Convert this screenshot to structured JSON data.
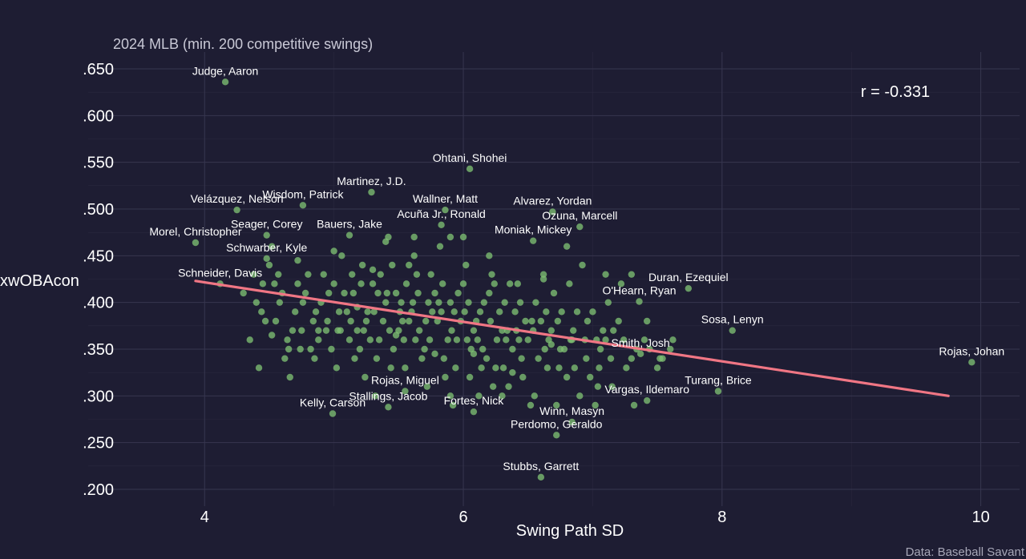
{
  "chart_data": {
    "type": "scatter",
    "subtitle": "2024 MLB (min. 200 competitive swings)",
    "xlabel": "Swing Path SD",
    "ylabel": "xwOBAcon",
    "caption": "Data: Baseball Savant",
    "correlation_label": "r = -0.331",
    "xlim": [
      3.1,
      10.3
    ],
    "ylim": [
      0.182,
      0.668
    ],
    "x_ticks": [
      4,
      6,
      8,
      10
    ],
    "x_tick_labels": [
      "4",
      "6",
      "8",
      "10"
    ],
    "y_ticks": [
      0.2,
      0.25,
      0.3,
      0.35,
      0.4,
      0.45,
      0.5,
      0.55,
      0.6,
      0.65
    ],
    "y_tick_labels": [
      ".200",
      ".250",
      ".300",
      ".350",
      ".400",
      ".450",
      ".500",
      ".550",
      ".600",
      ".650"
    ],
    "grid": true,
    "point_color": "#7dbf72",
    "fit_color": "#f07684",
    "fit_line": {
      "x": [
        3.93,
        9.75
      ],
      "y": [
        0.423,
        0.3
      ]
    },
    "labeled_points": [
      {
        "name": "Judge, Aaron",
        "x": 4.16,
        "y": 0.636
      },
      {
        "name": "Ohtani, Shohei",
        "x": 6.05,
        "y": 0.543
      },
      {
        "name": "Martinez, J.D.",
        "x": 5.29,
        "y": 0.518
      },
      {
        "name": "Wisdom, Patrick",
        "x": 4.76,
        "y": 0.504
      },
      {
        "name": "Velázquez, Nelson",
        "x": 4.25,
        "y": 0.499
      },
      {
        "name": "Wallner, Matt",
        "x": 5.86,
        "y": 0.499
      },
      {
        "name": "Alvarez, Yordan",
        "x": 6.69,
        "y": 0.497
      },
      {
        "name": "Seager, Corey",
        "x": 4.48,
        "y": 0.472
      },
      {
        "name": "Acuña Jr., Ronald",
        "x": 5.83,
        "y": 0.483
      },
      {
        "name": "Morel, Christopher",
        "x": 3.93,
        "y": 0.464
      },
      {
        "name": "Bauers, Jake",
        "x": 5.12,
        "y": 0.472
      },
      {
        "name": "Ozuna, Marcell",
        "x": 6.9,
        "y": 0.481
      },
      {
        "name": "Moniak, Mickey",
        "x": 6.54,
        "y": 0.466
      },
      {
        "name": "Schwarber, Kyle",
        "x": 4.48,
        "y": 0.447
      },
      {
        "name": "Schneider, Davis",
        "x": 4.12,
        "y": 0.42
      },
      {
        "name": "Duran, Ezequiel",
        "x": 7.74,
        "y": 0.415
      },
      {
        "name": "O'Hearn, Ryan",
        "x": 7.36,
        "y": 0.401
      },
      {
        "name": "Sosa, Lenyn",
        "x": 8.08,
        "y": 0.37
      },
      {
        "name": "Smith, Josh",
        "x": 7.37,
        "y": 0.345
      },
      {
        "name": "Rojas, Johan",
        "x": 9.93,
        "y": 0.336
      },
      {
        "name": "Turang, Brice",
        "x": 7.97,
        "y": 0.305
      },
      {
        "name": "Rojas, Miguel",
        "x": 5.55,
        "y": 0.305
      },
      {
        "name": "Stallings, Jacob",
        "x": 5.42,
        "y": 0.288
      },
      {
        "name": "Kelly, Carson",
        "x": 4.99,
        "y": 0.281
      },
      {
        "name": "Fortes, Nick",
        "x": 6.08,
        "y": 0.283
      },
      {
        "name": "Winn, Masyn",
        "x": 6.84,
        "y": 0.272
      },
      {
        "name": "Vargas, Ildemaro",
        "x": 7.42,
        "y": 0.295
      },
      {
        "name": "Perdomo, Geraldo",
        "x": 6.72,
        "y": 0.258
      },
      {
        "name": "Stubbs, Garrett",
        "x": 6.6,
        "y": 0.213
      }
    ],
    "points": [
      [
        4.45,
        0.42
      ],
      [
        4.5,
        0.44
      ],
      [
        4.6,
        0.41
      ],
      [
        4.7,
        0.39
      ],
      [
        4.8,
        0.43
      ],
      [
        4.9,
        0.4
      ],
      [
        5.0,
        0.42
      ],
      [
        5.05,
        0.37
      ],
      [
        5.1,
        0.39
      ],
      [
        5.15,
        0.41
      ],
      [
        5.2,
        0.35
      ],
      [
        5.25,
        0.38
      ],
      [
        5.3,
        0.42
      ],
      [
        5.35,
        0.36
      ],
      [
        5.4,
        0.4
      ],
      [
        5.45,
        0.44
      ],
      [
        5.5,
        0.37
      ],
      [
        5.55,
        0.33
      ],
      [
        5.6,
        0.39
      ],
      [
        5.65,
        0.41
      ],
      [
        5.7,
        0.35
      ],
      [
        5.75,
        0.43
      ],
      [
        5.8,
        0.38
      ],
      [
        5.85,
        0.34
      ],
      [
        5.9,
        0.4
      ],
      [
        5.95,
        0.36
      ],
      [
        6.0,
        0.42
      ],
      [
        6.05,
        0.32
      ],
      [
        6.1,
        0.38
      ],
      [
        6.15,
        0.35
      ],
      [
        6.2,
        0.41
      ],
      [
        6.25,
        0.33
      ],
      [
        6.3,
        0.37
      ],
      [
        6.35,
        0.31
      ],
      [
        6.4,
        0.39
      ],
      [
        6.45,
        0.34
      ],
      [
        6.5,
        0.36
      ],
      [
        6.55,
        0.3
      ],
      [
        6.6,
        0.38
      ],
      [
        6.65,
        0.33
      ],
      [
        6.7,
        0.41
      ],
      [
        6.75,
        0.35
      ],
      [
        6.8,
        0.32
      ],
      [
        6.85,
        0.37
      ],
      [
        6.9,
        0.3
      ],
      [
        6.95,
        0.34
      ],
      [
        7.0,
        0.39
      ],
      [
        7.05,
        0.33
      ],
      [
        7.1,
        0.36
      ],
      [
        7.15,
        0.31
      ],
      [
        7.2,
        0.38
      ],
      [
        7.3,
        0.34
      ],
      [
        7.4,
        0.36
      ],
      [
        7.5,
        0.33
      ],
      [
        7.6,
        0.35
      ],
      [
        4.35,
        0.36
      ],
      [
        4.55,
        0.38
      ],
      [
        4.65,
        0.35
      ],
      [
        4.75,
        0.37
      ],
      [
        4.85,
        0.34
      ],
      [
        4.95,
        0.38
      ],
      [
        5.02,
        0.33
      ],
      [
        5.12,
        0.36
      ],
      [
        5.22,
        0.44
      ],
      [
        5.32,
        0.3
      ],
      [
        5.42,
        0.47
      ],
      [
        5.52,
        0.4
      ],
      [
        5.62,
        0.45
      ],
      [
        5.72,
        0.31
      ],
      [
        5.82,
        0.46
      ],
      [
        5.92,
        0.29
      ],
      [
        6.02,
        0.44
      ],
      [
        6.12,
        0.3
      ],
      [
        6.22,
        0.43
      ],
      [
        6.32,
        0.4
      ],
      [
        6.42,
        0.42
      ],
      [
        6.52,
        0.29
      ],
      [
        6.62,
        0.43
      ],
      [
        6.72,
        0.29
      ],
      [
        6.82,
        0.42
      ],
      [
        6.92,
        0.44
      ],
      [
        7.02,
        0.29
      ],
      [
        7.12,
        0.4
      ],
      [
        7.22,
        0.42
      ],
      [
        7.32,
        0.29
      ],
      [
        7.42,
        0.38
      ],
      [
        7.52,
        0.34
      ],
      [
        7.62,
        0.36
      ],
      [
        4.4,
        0.4
      ],
      [
        4.42,
        0.33
      ],
      [
        4.52,
        0.46
      ],
      [
        4.62,
        0.34
      ],
      [
        4.72,
        0.42
      ],
      [
        4.82,
        0.35
      ],
      [
        4.92,
        0.43
      ],
      [
        5.06,
        0.45
      ],
      [
        5.16,
        0.34
      ],
      [
        5.26,
        0.39
      ],
      [
        5.36,
        0.43
      ],
      [
        5.46,
        0.35
      ],
      [
        5.56,
        0.42
      ],
      [
        5.66,
        0.37
      ],
      [
        5.76,
        0.39
      ],
      [
        5.86,
        0.32
      ],
      [
        5.96,
        0.41
      ],
      [
        6.06,
        0.35
      ],
      [
        6.16,
        0.4
      ],
      [
        6.26,
        0.36
      ],
      [
        6.36,
        0.42
      ],
      [
        6.46,
        0.32
      ],
      [
        6.56,
        0.4
      ],
      [
        6.66,
        0.36
      ],
      [
        6.76,
        0.39
      ],
      [
        6.86,
        0.33
      ],
      [
        6.96,
        0.38
      ],
      [
        7.06,
        0.35
      ],
      [
        7.16,
        0.37
      ],
      [
        7.26,
        0.33
      ],
      [
        4.58,
        0.4
      ],
      [
        4.68,
        0.37
      ],
      [
        4.78,
        0.41
      ],
      [
        4.88,
        0.37
      ],
      [
        4.98,
        0.35
      ],
      [
        5.08,
        0.41
      ],
      [
        5.18,
        0.37
      ],
      [
        5.28,
        0.36
      ],
      [
        5.38,
        0.38
      ],
      [
        5.48,
        0.41
      ],
      [
        5.58,
        0.38
      ],
      [
        5.68,
        0.34
      ],
      [
        5.78,
        0.41
      ],
      [
        5.88,
        0.36
      ],
      [
        5.98,
        0.38
      ],
      [
        6.08,
        0.37
      ],
      [
        6.18,
        0.34
      ],
      [
        6.28,
        0.39
      ],
      [
        6.38,
        0.35
      ],
      [
        6.48,
        0.38
      ],
      [
        6.58,
        0.34
      ],
      [
        6.68,
        0.37
      ],
      [
        6.78,
        0.35
      ],
      [
        6.88,
        0.39
      ],
      [
        6.98,
        0.32
      ],
      [
        7.08,
        0.37
      ],
      [
        5.21,
        0.42
      ],
      [
        5.31,
        0.39
      ],
      [
        5.41,
        0.41
      ],
      [
        5.51,
        0.39
      ],
      [
        5.61,
        0.4
      ],
      [
        5.71,
        0.38
      ],
      [
        5.81,
        0.4
      ],
      [
        5.91,
        0.37
      ],
      [
        6.01,
        0.39
      ],
      [
        6.11,
        0.36
      ],
      [
        6.21,
        0.38
      ],
      [
        6.31,
        0.33
      ],
      [
        6.41,
        0.37
      ],
      [
        4.3,
        0.41
      ],
      [
        4.38,
        0.43
      ],
      [
        4.47,
        0.38
      ],
      [
        4.57,
        0.43
      ],
      [
        4.66,
        0.32
      ],
      [
        4.76,
        0.4
      ],
      [
        4.86,
        0.39
      ],
      [
        4.96,
        0.41
      ],
      [
        5.04,
        0.39
      ],
      [
        5.14,
        0.43
      ],
      [
        5.24,
        0.32
      ],
      [
        5.34,
        0.41
      ],
      [
        5.44,
        0.33
      ],
      [
        5.54,
        0.36
      ],
      [
        5.64,
        0.43
      ],
      [
        5.74,
        0.36
      ],
      [
        5.84,
        0.42
      ],
      [
        5.94,
        0.33
      ],
      [
        6.04,
        0.4
      ],
      [
        6.14,
        0.33
      ],
      [
        6.24,
        0.42
      ],
      [
        6.34,
        0.37
      ],
      [
        6.44,
        0.4
      ],
      [
        6.54,
        0.37
      ],
      [
        6.64,
        0.39
      ],
      [
        6.74,
        0.33
      ],
      [
        6.84,
        0.36
      ],
      [
        6.94,
        0.36
      ],
      [
        7.04,
        0.31
      ],
      [
        7.14,
        0.34
      ],
      [
        7.24,
        0.36
      ],
      [
        7.34,
        0.35
      ],
      [
        7.44,
        0.35
      ],
      [
        7.54,
        0.34
      ],
      [
        4.44,
        0.39
      ],
      [
        4.54,
        0.42
      ],
      [
        4.64,
        0.36
      ],
      [
        4.74,
        0.35
      ],
      [
        4.84,
        0.38
      ],
      [
        4.94,
        0.37
      ],
      [
        5.03,
        0.37
      ],
      [
        5.13,
        0.38
      ],
      [
        5.23,
        0.37
      ],
      [
        5.33,
        0.34
      ],
      [
        5.43,
        0.37
      ],
      [
        5.53,
        0.38
      ],
      [
        5.63,
        0.36
      ],
      [
        5.73,
        0.4
      ],
      [
        5.83,
        0.39
      ],
      [
        5.93,
        0.39
      ],
      [
        6.03,
        0.36
      ],
      [
        6.13,
        0.39
      ],
      [
        6.23,
        0.31
      ],
      [
        6.33,
        0.36
      ],
      [
        6.43,
        0.36
      ],
      [
        6.53,
        0.38
      ],
      [
        6.63,
        0.35
      ],
      [
        6.73,
        0.38
      ],
      [
        6.83,
        0.36
      ],
      [
        7.03,
        0.36
      ],
      [
        4.52,
        0.365
      ],
      [
        5.18,
        0.395
      ],
      [
        5.48,
        0.365
      ],
      [
        5.78,
        0.345
      ],
      [
        6.08,
        0.345
      ],
      [
        6.38,
        0.325
      ],
      [
        6.68,
        0.355
      ],
      [
        5.0,
        0.455
      ],
      [
        5.62,
        0.47
      ],
      [
        5.9,
        0.47
      ],
      [
        6.2,
        0.45
      ],
      [
        6.8,
        0.46
      ],
      [
        5.4,
        0.465
      ],
      [
        7.1,
        0.43
      ],
      [
        5.3,
        0.435
      ],
      [
        4.72,
        0.445
      ],
      [
        6.0,
        0.47
      ],
      [
        5.58,
        0.44
      ],
      [
        6.62,
        0.425
      ],
      [
        7.3,
        0.43
      ],
      [
        4.88,
        0.36
      ],
      [
        5.9,
        0.3
      ],
      [
        6.3,
        0.3
      ]
    ]
  }
}
